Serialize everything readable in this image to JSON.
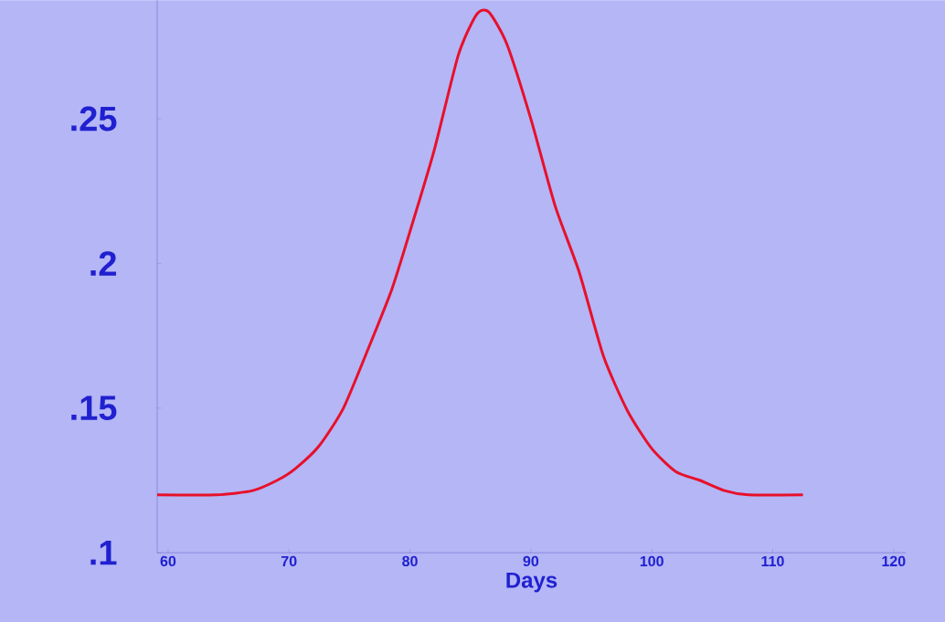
{
  "chart_data": {
    "type": "line",
    "xlabel": "Days",
    "x": [
      59.1,
      64,
      67,
      69,
      70.5,
      72.5,
      74.5,
      76.5,
      78.5,
      80,
      82,
      84,
      85.5,
      86.5,
      88,
      90,
      92,
      94,
      96,
      98,
      100,
      102,
      104,
      106,
      108,
      112.5
    ],
    "series": [
      {
        "color": "#e8102a",
        "values": [
          0.12,
          0.12,
          0.1215,
          0.125,
          0.129,
          0.137,
          0.15,
          0.17,
          0.191,
          0.211,
          0.239,
          0.272,
          0.286,
          0.287,
          0.276,
          0.25,
          0.22,
          0.197,
          0.168,
          0.149,
          0.136,
          0.128,
          0.125,
          0.1215,
          0.12,
          0.12
        ]
      }
    ],
    "xlim": [
      59.1,
      121
    ],
    "ylim": [
      0.1,
      0.291
    ],
    "xticks": [
      60,
      70,
      80,
      90,
      100,
      110,
      120
    ],
    "yticks": [
      {
        "value": 0.1,
        "label": ".1"
      },
      {
        "value": 0.15,
        "label": ".15"
      },
      {
        "value": 0.2,
        "label": ".2"
      },
      {
        "value": 0.25,
        "label": ".25"
      }
    ],
    "grid": false,
    "marker": "none",
    "line_style": "solid"
  }
}
